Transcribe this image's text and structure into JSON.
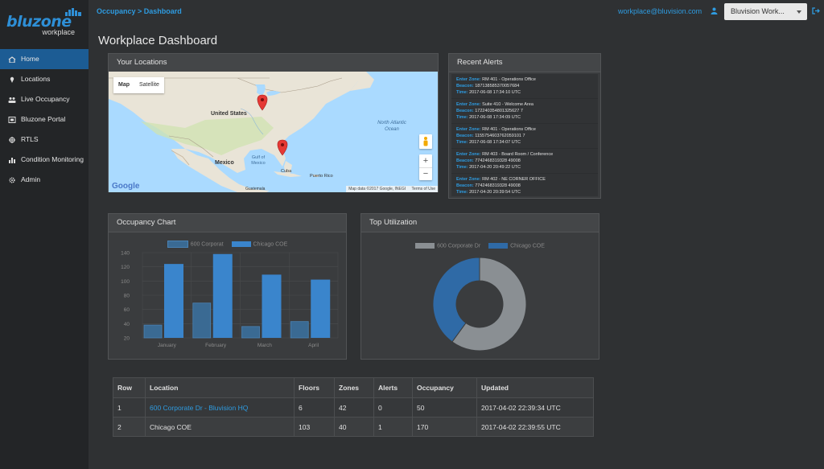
{
  "brand": {
    "name": "bluzone",
    "sub": "workplace",
    "color": "#2e8fd6"
  },
  "breadcrumb": "Occupancy > Dashboard",
  "user": {
    "email": "workplace@bluvision.com",
    "org": "Bluvision Work..."
  },
  "page_title": "Workplace Dashboard",
  "sidebar": {
    "items": [
      {
        "label": "Home",
        "icon": "home-icon"
      },
      {
        "label": "Locations",
        "icon": "map-marker-icon"
      },
      {
        "label": "Live Occupancy",
        "icon": "users-icon"
      },
      {
        "label": "Bluzone Portal",
        "icon": "portal-icon"
      },
      {
        "label": "RTLS",
        "icon": "crosshair-icon"
      },
      {
        "label": "Condition Monitoring",
        "icon": "bar-chart-icon"
      },
      {
        "label": "Admin",
        "icon": "gear-icon"
      }
    ]
  },
  "locations_panel": {
    "title": "Your Locations",
    "map_tab_map": "Map",
    "map_tab_satellite": "Satellite",
    "labels": {
      "us": "United States",
      "mexico": "Mexico",
      "gulf": "Gulf of Mexico",
      "cuba": "Cuba",
      "pr": "Puerto Rico",
      "ocean": "North Atlantic Ocean",
      "guat": "Guatemala"
    },
    "google": "Google",
    "map_data": "Map data ©2017 Google, INEGI",
    "terms": "Terms of Use"
  },
  "alerts_panel": {
    "title": "Recent Alerts",
    "k_zone": "Enter Zone:",
    "k_beacon": "Beacon:",
    "k_time": "Time:",
    "items": [
      {
        "zone": "RM 401 - Operations Office",
        "beacon": "187138585370057684",
        "time": "2017-06-08 17:34:10 UTC"
      },
      {
        "zone": "Suite 410 - Welcome Area",
        "beacon": "172240354801325627 7",
        "time": "2017-06-08 17:34:09 UTC"
      },
      {
        "zone": "RM 401 - Operations Office",
        "beacon": "1155754603762059101 7",
        "time": "2017-06-08 17:34:07 UTC"
      },
      {
        "zone": "RM 403 - Board Room / Conference",
        "beacon": "7742468319328 49008",
        "time": "2017-04-20 20:49:22 UTC"
      },
      {
        "zone": "RM 402 - NE CORNER OFFICE",
        "beacon": "7742468319328 49008",
        "time": "2017-04-20 20:39:54 UTC"
      }
    ]
  },
  "occupancy_panel": {
    "title": "Occupancy Chart"
  },
  "utilization_panel": {
    "title": "Top Utilization"
  },
  "chart_data": [
    {
      "type": "bar",
      "categories": [
        "January",
        "February",
        "March",
        "April"
      ],
      "series": [
        {
          "name": "600 Corporat",
          "values": [
            38,
            69,
            36,
            43
          ],
          "color": "#3a6a93"
        },
        {
          "name": "Chicago COE",
          "values": [
            124,
            138,
            109,
            102
          ],
          "color": "#3a85cc"
        }
      ],
      "yticks": [
        20,
        40,
        60,
        80,
        100,
        120,
        140
      ],
      "ylim": [
        20,
        140
      ],
      "grid": true,
      "legend": "top"
    },
    {
      "type": "pie",
      "donut": true,
      "labels": [
        "600 Corporate Dr",
        "Chicago COE"
      ],
      "values": [
        60,
        40
      ],
      "colors": [
        "#8a8f93",
        "#2f6aa6"
      ],
      "legend": "top"
    }
  ],
  "table": {
    "headers": [
      "Row",
      "Location",
      "Floors",
      "Zones",
      "Alerts",
      "Occupancy",
      "Updated"
    ],
    "rows": [
      [
        "1",
        "600 Corporate Dr - Bluvision HQ",
        "6",
        "42",
        "0",
        "50",
        "2017-04-02 22:39:34 UTC"
      ],
      [
        "2",
        "Chicago COE",
        "103",
        "40",
        "1",
        "170",
        "2017-04-02 22:39:55 UTC"
      ]
    ]
  }
}
